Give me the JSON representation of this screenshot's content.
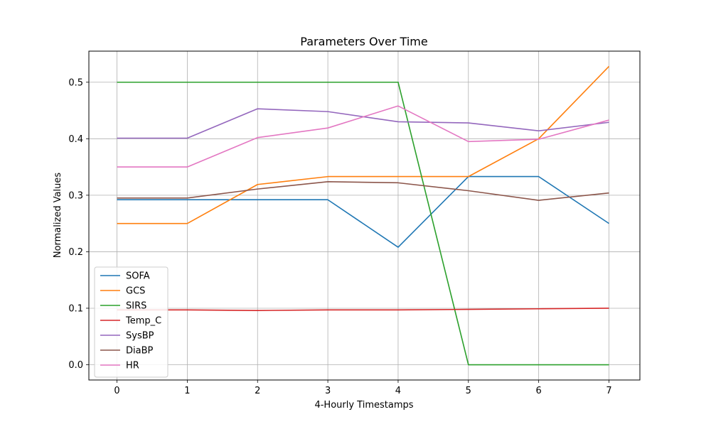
{
  "chart_data": {
    "type": "line",
    "title": "Parameters Over Time",
    "xlabel": "4-Hourly Timestamps",
    "ylabel": "Normalized Values",
    "x": [
      0,
      1,
      2,
      3,
      4,
      5,
      6,
      7
    ],
    "xticks": [
      "0",
      "1",
      "2",
      "3",
      "4",
      "5",
      "6",
      "7"
    ],
    "yticks": [
      0.0,
      0.1,
      0.2,
      0.3,
      0.4,
      0.5
    ],
    "ytick_labels": [
      "0.0",
      "0.1",
      "0.2",
      "0.3",
      "0.4",
      "0.5"
    ],
    "xlim": [
      -0.4,
      7.44
    ],
    "ylim": [
      -0.027,
      0.555
    ],
    "grid": true,
    "legend_position": "lower-left",
    "series": [
      {
        "name": "SOFA",
        "color": "#1f77b4",
        "values": [
          0.292,
          0.292,
          0.292,
          0.292,
          0.208,
          0.333,
          0.333,
          0.25
        ]
      },
      {
        "name": "GCS",
        "color": "#ff7f0e",
        "values": [
          0.25,
          0.25,
          0.319,
          0.333,
          0.333,
          0.333,
          0.4,
          0.528
        ]
      },
      {
        "name": "SIRS",
        "color": "#2ca02c",
        "values": [
          0.5,
          0.5,
          0.5,
          0.5,
          0.5,
          0.0,
          0.0,
          0.0
        ]
      },
      {
        "name": "Temp_C",
        "color": "#d62728",
        "values": [
          0.097,
          0.097,
          0.096,
          0.097,
          0.097,
          0.098,
          0.099,
          0.1
        ]
      },
      {
        "name": "SysBP",
        "color": "#9467bd",
        "values": [
          0.401,
          0.401,
          0.453,
          0.448,
          0.43,
          0.428,
          0.414,
          0.429
        ]
      },
      {
        "name": "DiaBP",
        "color": "#8c564b",
        "values": [
          0.295,
          0.295,
          0.311,
          0.324,
          0.322,
          0.308,
          0.291,
          0.304
        ]
      },
      {
        "name": "HR",
        "color": "#e377c2",
        "values": [
          0.35,
          0.35,
          0.402,
          0.419,
          0.458,
          0.395,
          0.399,
          0.433
        ]
      }
    ]
  }
}
